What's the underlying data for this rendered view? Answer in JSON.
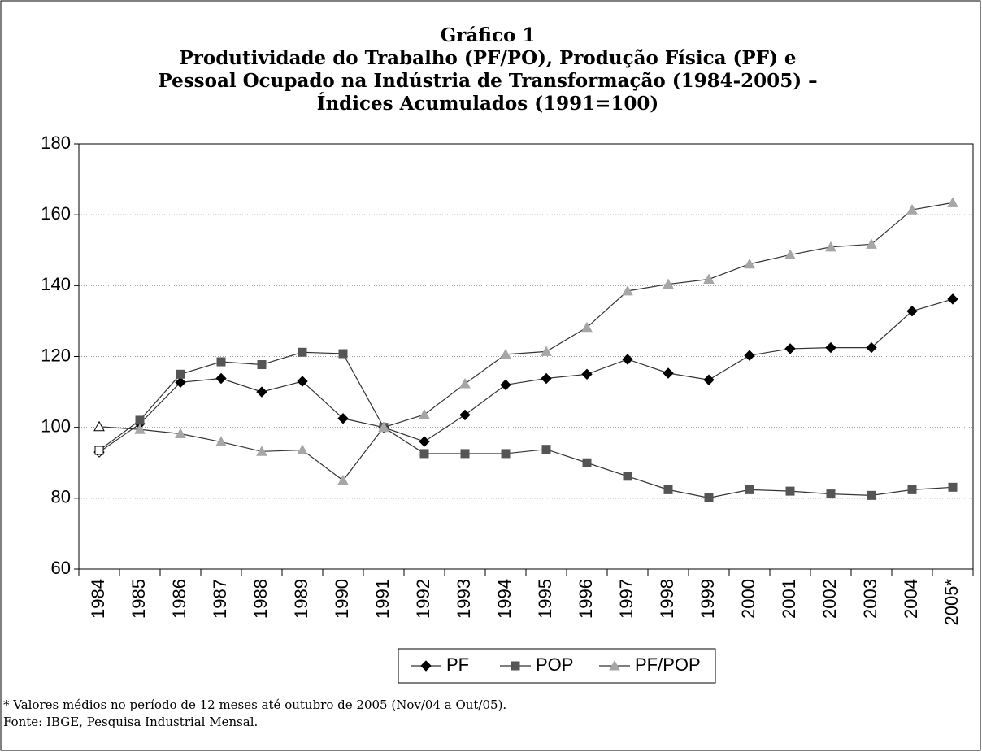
{
  "chart_data": {
    "type": "line",
    "title": [
      "Gráfico 1",
      "Produtividade do Trabalho (PF/PO), Produção Física (PF) e",
      "Pessoal Ocupado na Indústria de Transformação (1984-2005) –",
      "Índices Acumulados (1991=100)"
    ],
    "categories": [
      "1984",
      "1985",
      "1986",
      "1987",
      "1988",
      "1989",
      "1990",
      "1991",
      "1992",
      "1993",
      "1994",
      "1995",
      "1996",
      "1997",
      "1998",
      "1999",
      "2000",
      "2001",
      "2002",
      "2003",
      "2004",
      "2005*"
    ],
    "series": [
      {
        "name": "PF",
        "color": "#000000",
        "marker": "diamond",
        "values": [
          93,
          101,
          112.7,
          113.8,
          110,
          113,
          102.5,
          100,
          96,
          103.5,
          112,
          113.8,
          115,
          119.2,
          115.3,
          113.4,
          120.3,
          122.2,
          122.5,
          122.5,
          132.8,
          136.2
        ]
      },
      {
        "name": "POP",
        "color": "#555555",
        "marker": "square",
        "values": [
          93.5,
          102,
          115,
          118.5,
          117.7,
          121.2,
          120.8,
          100,
          92.6,
          92.6,
          92.6,
          93.8,
          90,
          86.2,
          82.4,
          80.1,
          82.4,
          82,
          81.2,
          80.8,
          82.4,
          83.1
        ]
      },
      {
        "name": "PF/POP",
        "color": "#a6a6a6",
        "marker": "triangle",
        "values": [
          100.2,
          99.4,
          98.2,
          95.9,
          93.2,
          93.6,
          85,
          100,
          103.6,
          112.3,
          120.6,
          121.4,
          128.2,
          138.5,
          140.4,
          141.8,
          146.1,
          148.7,
          150.9,
          151.7,
          161.4,
          163.4
        ]
      }
    ],
    "ylim": [
      60,
      180
    ],
    "yticks": [
      60,
      80,
      100,
      120,
      140,
      160,
      180
    ],
    "grid": true,
    "footnotes": [
      "* Valores médios no período de 12 meses até outubro de 2005 (Nov/04 a Out/05).",
      "Fonte: IBGE, Pesquisa Industrial Mensal."
    ]
  }
}
